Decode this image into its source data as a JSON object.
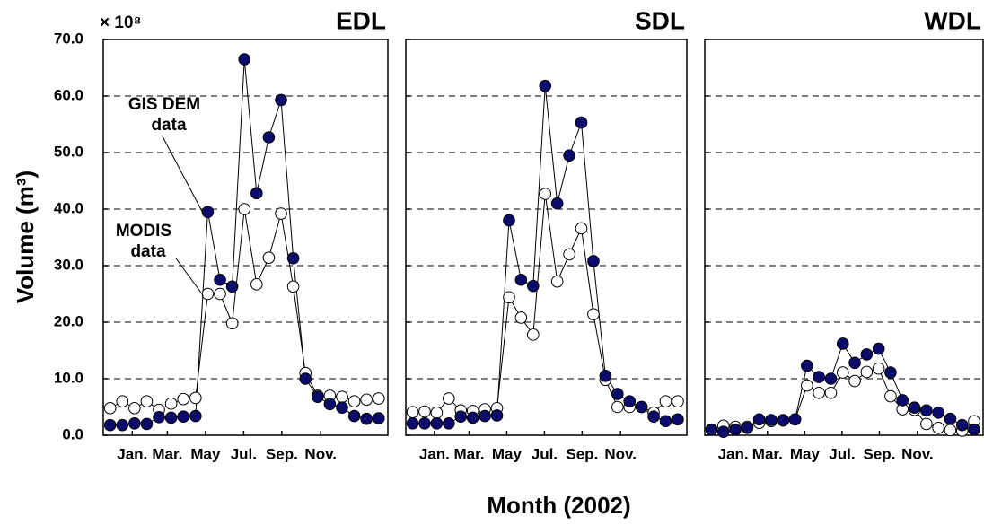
{
  "chart_data": [
    {
      "type": "line",
      "title": "EDL",
      "exponent": "× 10⁸",
      "ylabel": "Volume  (m³)",
      "annotations": [
        [
          "GIS DEM",
          "data"
        ],
        [
          "MODIS",
          "data"
        ]
      ],
      "x": [
        1,
        17,
        33,
        49,
        65,
        81,
        97,
        113,
        129,
        145,
        161,
        177,
        193,
        209,
        225,
        241,
        257,
        273,
        289,
        305,
        321,
        337,
        353
      ],
      "xlim": [
        -8,
        365
      ],
      "xticks": [
        {
          "value": 30,
          "label": "Jan."
        },
        {
          "value": 76,
          "label": "Mar."
        },
        {
          "value": 126,
          "label": "May"
        },
        {
          "value": 176,
          "label": "Jul."
        },
        {
          "value": 226,
          "label": "Sep."
        },
        {
          "value": 277,
          "label": "Nov."
        }
      ],
      "ylim": [
        0,
        70
      ],
      "yticks": [
        {
          "value": 0,
          "label": "0.0"
        },
        {
          "value": 10,
          "label": "10.0"
        },
        {
          "value": 20,
          "label": "20.0"
        },
        {
          "value": 30,
          "label": "30.0"
        },
        {
          "value": 40,
          "label": "40.0"
        },
        {
          "value": 50,
          "label": "50.0"
        },
        {
          "value": 60,
          "label": "60.0"
        },
        {
          "value": 70,
          "label": "70.0"
        }
      ],
      "grid": true,
      "series": [
        {
          "marker": "open",
          "color": "#ffffff",
          "values": [
            4.8,
            6.0,
            4.8,
            6.0,
            4.5,
            5.6,
            6.4,
            6.6,
            25.0,
            25.0,
            19.8,
            40.0,
            26.7,
            31.4,
            39.2,
            26.3,
            11.0,
            7.0,
            7.0,
            6.8,
            6.0,
            6.3,
            6.5
          ]
        },
        {
          "marker": "filled",
          "color": "#0b0b6b",
          "values": [
            1.8,
            1.8,
            2.1,
            2.0,
            3.2,
            3.1,
            3.3,
            3.4,
            39.5,
            27.5,
            26.3,
            66.5,
            42.8,
            52.7,
            59.3,
            31.3,
            10.0,
            6.8,
            5.5,
            4.9,
            3.4,
            2.9,
            3.0
          ]
        }
      ]
    },
    {
      "type": "line",
      "title": "SDL",
      "xlabel": "Month (2002)",
      "x": [
        1,
        17,
        33,
        49,
        65,
        81,
        97,
        113,
        129,
        145,
        161,
        177,
        193,
        209,
        225,
        241,
        257,
        273,
        289,
        305,
        321,
        337,
        353
      ],
      "xlim": [
        -8,
        365
      ],
      "xticks": [
        {
          "value": 30,
          "label": "Jan."
        },
        {
          "value": 76,
          "label": "Mar."
        },
        {
          "value": 126,
          "label": "May"
        },
        {
          "value": 176,
          "label": "Jul."
        },
        {
          "value": 226,
          "label": "Sep."
        },
        {
          "value": 277,
          "label": "Nov."
        }
      ],
      "ylim": [
        0,
        70
      ],
      "yticks": [
        0,
        10,
        20,
        30,
        40,
        50,
        60,
        70
      ],
      "grid": true,
      "series": [
        {
          "marker": "open",
          "color": "#ffffff",
          "values": [
            4.1,
            4.2,
            4.0,
            6.5,
            4.4,
            4.3,
            4.6,
            4.8,
            24.4,
            20.8,
            17.8,
            42.7,
            27.2,
            32.0,
            36.6,
            21.4,
            9.8,
            5.0,
            5.0,
            5.0,
            4.0,
            6.0,
            6.0
          ]
        },
        {
          "marker": "filled",
          "color": "#0b0b6b",
          "values": [
            2.1,
            2.1,
            2.1,
            2.1,
            3.3,
            3.1,
            3.4,
            3.5,
            38.0,
            27.5,
            26.4,
            61.8,
            41.0,
            49.5,
            55.3,
            30.8,
            10.5,
            7.3,
            6.0,
            5.0,
            3.3,
            2.5,
            2.8
          ]
        }
      ]
    },
    {
      "type": "line",
      "title": "WDL",
      "x": [
        1,
        17,
        33,
        49,
        65,
        81,
        97,
        113,
        129,
        145,
        161,
        177,
        193,
        209,
        225,
        241,
        257,
        273,
        289,
        305,
        321,
        337,
        353
      ],
      "xlim": [
        -8,
        365
      ],
      "xticks": [
        {
          "value": 30,
          "label": "Jan."
        },
        {
          "value": 76,
          "label": "Mar."
        },
        {
          "value": 126,
          "label": "May"
        },
        {
          "value": 176,
          "label": "Jul."
        },
        {
          "value": 226,
          "label": "Sep."
        },
        {
          "value": 277,
          "label": "Nov."
        }
      ],
      "ylim": [
        0,
        70
      ],
      "yticks": [
        0,
        10,
        20,
        30,
        40,
        50,
        60,
        70
      ],
      "grid": true,
      "series": [
        {
          "marker": "open",
          "color": "#ffffff",
          "values": [
            1.0,
            1.7,
            1.5,
            1.5,
            2.2,
            2.5,
            2.7,
            2.8,
            8.8,
            7.5,
            7.5,
            11.1,
            9.6,
            11.2,
            11.8,
            6.9,
            4.6,
            4.5,
            2.0,
            1.3,
            0.9,
            0.8,
            2.5
          ]
        },
        {
          "marker": "filled",
          "color": "#0b0b6b",
          "values": [
            1.0,
            0.6,
            1.0,
            1.3,
            2.8,
            2.7,
            2.6,
            2.8,
            12.3,
            10.3,
            10.0,
            16.2,
            12.8,
            14.3,
            15.3,
            11.1,
            6.2,
            4.9,
            4.4,
            4.0,
            2.9,
            1.8,
            1.0
          ]
        }
      ]
    }
  ]
}
